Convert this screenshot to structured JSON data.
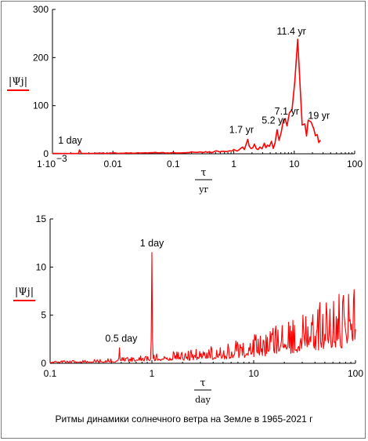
{
  "caption": "Ритмы динамики солнечного ветра на Земле в 1965-2021 г",
  "colors": {
    "series": "#ff0000",
    "axis": "#000000",
    "grid_ticks": "#808080"
  },
  "chart_data": [
    {
      "type": "line",
      "xscale": "log",
      "xlim": [
        0.001,
        100
      ],
      "ylim": [
        0,
        300
      ],
      "xticks": [
        "1·10",
        "0.01",
        "0.1",
        "1",
        "10",
        "100"
      ],
      "xtick_first_exponent": "−3",
      "yticks": [
        "0",
        "100",
        "200",
        "300"
      ],
      "ylabel": "|Ψj|",
      "xlabel": "τ",
      "xlabel_unit": "yr",
      "grid": false,
      "series": [
        {
          "x": [
            0.001,
            0.0027,
            0.0028,
            0.003,
            0.01,
            0.05,
            0.1,
            0.2,
            0.5,
            1.0,
            1.4,
            1.6,
            1.7,
            1.8,
            2.2,
            2.7,
            3.2,
            3.6,
            4.2,
            4.8,
            5.2,
            5.6,
            6.1,
            6.6,
            7.1,
            7.6,
            8.3,
            9.2,
            10.2,
            11.4,
            12.4,
            13.5,
            15.0,
            17.0,
            19.0,
            21.0,
            24.0,
            27.0
          ],
          "y": [
            1,
            1,
            8,
            1,
            2,
            3,
            3,
            4,
            6,
            9,
            14,
            20,
            30,
            16,
            20,
            14,
            22,
            18,
            26,
            22,
            50,
            28,
            45,
            70,
            72,
            58,
            85,
            92,
            150,
            238,
            150,
            60,
            62,
            70,
            66,
            52,
            40,
            28
          ]
        }
      ],
      "annotations": [
        {
          "text": "1 day",
          "x": 0.0028,
          "y": 8
        },
        {
          "text": "1.7 yr",
          "x": 1.7,
          "y": 30
        },
        {
          "text": "5.2 yr",
          "x": 5.2,
          "y": 50
        },
        {
          "text": "7.1 yr",
          "x": 7.1,
          "y": 72
        },
        {
          "text": "11.4 yr",
          "x": 11.4,
          "y": 238
        },
        {
          "text": "19 yr",
          "x": 19.0,
          "y": 66
        }
      ]
    },
    {
      "type": "line",
      "xscale": "log",
      "xlim": [
        0.1,
        100
      ],
      "ylim": [
        0,
        15
      ],
      "xticks": [
        "0.1",
        "1",
        "10",
        "100"
      ],
      "yticks": [
        "0",
        "5",
        "10",
        "15"
      ],
      "ylabel": "|Ψj|",
      "xlabel": "τ",
      "xlabel_unit": "day",
      "grid": false,
      "series": [
        {
          "x": [
            0.1,
            0.2,
            0.3,
            0.45,
            0.48,
            0.5,
            0.52,
            0.6,
            0.8,
            0.97,
            1.0,
            1.03,
            1.5,
            2,
            3,
            5,
            8,
            12,
            20,
            30,
            40,
            50,
            60,
            70,
            80,
            90,
            100
          ],
          "y": [
            0.1,
            0.15,
            0.2,
            0.25,
            1.6,
            0.3,
            0.3,
            0.35,
            0.45,
            0.5,
            11.5,
            0.5,
            0.55,
            0.6,
            0.7,
            0.9,
            1.2,
            1.5,
            2.0,
            2.4,
            2.8,
            3.0,
            3.2,
            3.3,
            3.4,
            3.5,
            3.5
          ]
        }
      ],
      "annotations": [
        {
          "text": "1 day",
          "x": 1.0,
          "y": 11.5
        },
        {
          "text": "0.5 day",
          "x": 0.5,
          "y": 1.6
        }
      ]
    }
  ]
}
